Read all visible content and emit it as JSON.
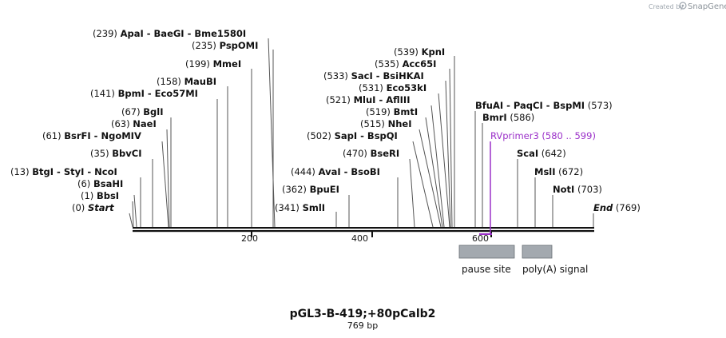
{
  "credit": {
    "prefix": "Created by",
    "brand": "SnapGene"
  },
  "map": {
    "length_bp": 769,
    "ticks": [
      "200",
      "400",
      "600"
    ],
    "title": "pGL3-B-419;+80pCalb2",
    "subtitle": "769 bp"
  },
  "labels": [
    {
      "text": "(239)  ApaI  - BaeGI  - Bme1580I",
      "pos": 239
    },
    {
      "text": "(235)  PspOMI",
      "pos": 235
    },
    {
      "text": "(199)  MmeI",
      "pos": 199
    },
    {
      "text": "(158)  MauBI",
      "pos": 158
    },
    {
      "text": "(141)  BpmI  - Eco57MI",
      "pos": 141
    },
    {
      "text": "(67)  BglI",
      "pos": 67
    },
    {
      "text": "(63)  NaeI",
      "pos": 63
    },
    {
      "text": "(61)  BsrFI  - NgoMIV",
      "pos": 61
    },
    {
      "text": "(35)  BbvCI",
      "pos": 35
    },
    {
      "text": "(13)  BtgI  - StyI  - NcoI",
      "pos": 13
    },
    {
      "text": "(6)  BsaHI",
      "pos": 6
    },
    {
      "text": "(1)  BbsI",
      "pos": 1
    },
    {
      "text": "(0)  Start",
      "pos": 0
    },
    {
      "text": "(539)  KpnI",
      "pos": 539
    },
    {
      "text": "(535)  Acc65I",
      "pos": 535
    },
    {
      "text": "(533)  SacI  - BsiHKAI",
      "pos": 533
    },
    {
      "text": "(531)  Eco53kI",
      "pos": 531
    },
    {
      "text": "(521)  MluI  - AflIII",
      "pos": 521
    },
    {
      "text": "(519)  BmtI",
      "pos": 519
    },
    {
      "text": "(515)  NheI",
      "pos": 515
    },
    {
      "text": "(502)  SapI  - BspQI",
      "pos": 502
    },
    {
      "text": "(470)  BseRI",
      "pos": 470
    },
    {
      "text": "(444)  AvaI  - BsoBI",
      "pos": 444
    },
    {
      "text": "(362)  BpuEI",
      "pos": 362
    },
    {
      "text": "(341)  SmlI",
      "pos": 341
    },
    {
      "text": "BfuAI  - PaqCI  - BspMI  (573)",
      "pos": 573
    },
    {
      "text": "BmrI  (586)",
      "pos": 586
    },
    {
      "text": "RVprimer3  (580 .. 599)",
      "pos": 580
    },
    {
      "text": "ScaI  (642)",
      "pos": 642
    },
    {
      "text": "MslI  (672)",
      "pos": 672
    },
    {
      "text": "NotI  (703)",
      "pos": 703
    },
    {
      "text": "End  (769)",
      "pos": 769
    }
  ],
  "features": [
    {
      "label": "pause site",
      "start": 545,
      "end": 638,
      "color": "#a3a9af"
    },
    {
      "label": "poly(A) signal",
      "start": 652,
      "end": 701,
      "color": "#a3a9af"
    }
  ],
  "colors": {
    "primer": "#9b30c9",
    "feature": "#a3a9af",
    "line": "#555555",
    "backbone": "#111111"
  }
}
